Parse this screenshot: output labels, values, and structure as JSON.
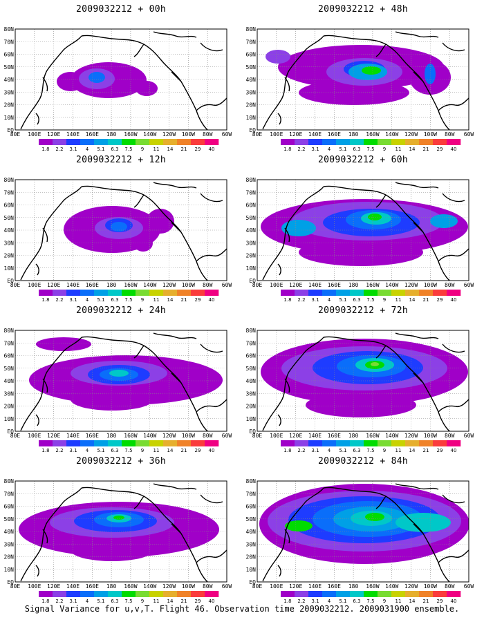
{
  "colorbar": {
    "labels": [
      "1.8",
      "2.2",
      "3.1",
      "4",
      "5.1",
      "6.3",
      "7.5",
      "9",
      "11",
      "14",
      "21",
      "29",
      "40"
    ],
    "colors": [
      "#a000c8",
      "#8c40e6",
      "#1e3cff",
      "#0a6efa",
      "#00a0e6",
      "#00c8c8",
      "#00dc00",
      "#78dc32",
      "#c8d200",
      "#e6af2d",
      "#f08228",
      "#fa3c3c",
      "#f00082"
    ]
  },
  "axes": {
    "lat_labels": [
      "80N",
      "70N",
      "60N",
      "50N",
      "40N",
      "30N",
      "20N",
      "10N",
      "EQ"
    ],
    "lon_labels": [
      "80E",
      "100E",
      "120E",
      "140E",
      "160E",
      "180",
      "160W",
      "140W",
      "120W",
      "100W",
      "80W",
      "60W"
    ]
  },
  "panels": [
    {
      "id": "p00",
      "title": "2009032212 + 00h"
    },
    {
      "id": "p48",
      "title": "2009032212 + 48h"
    },
    {
      "id": "p12",
      "title": "2009032212 + 12h"
    },
    {
      "id": "p60",
      "title": "2009032212 + 60h"
    },
    {
      "id": "p24",
      "title": "2009032212 + 24h"
    },
    {
      "id": "p72",
      "title": "2009032212 + 72h"
    },
    {
      "id": "p36",
      "title": "2009032212 + 36h"
    },
    {
      "id": "p84",
      "title": "2009032212 + 84h"
    }
  ],
  "footer": "Signal Variance for u,v,T. Flight 46. Observation time 2009032212. 2009031900 ensemble."
}
